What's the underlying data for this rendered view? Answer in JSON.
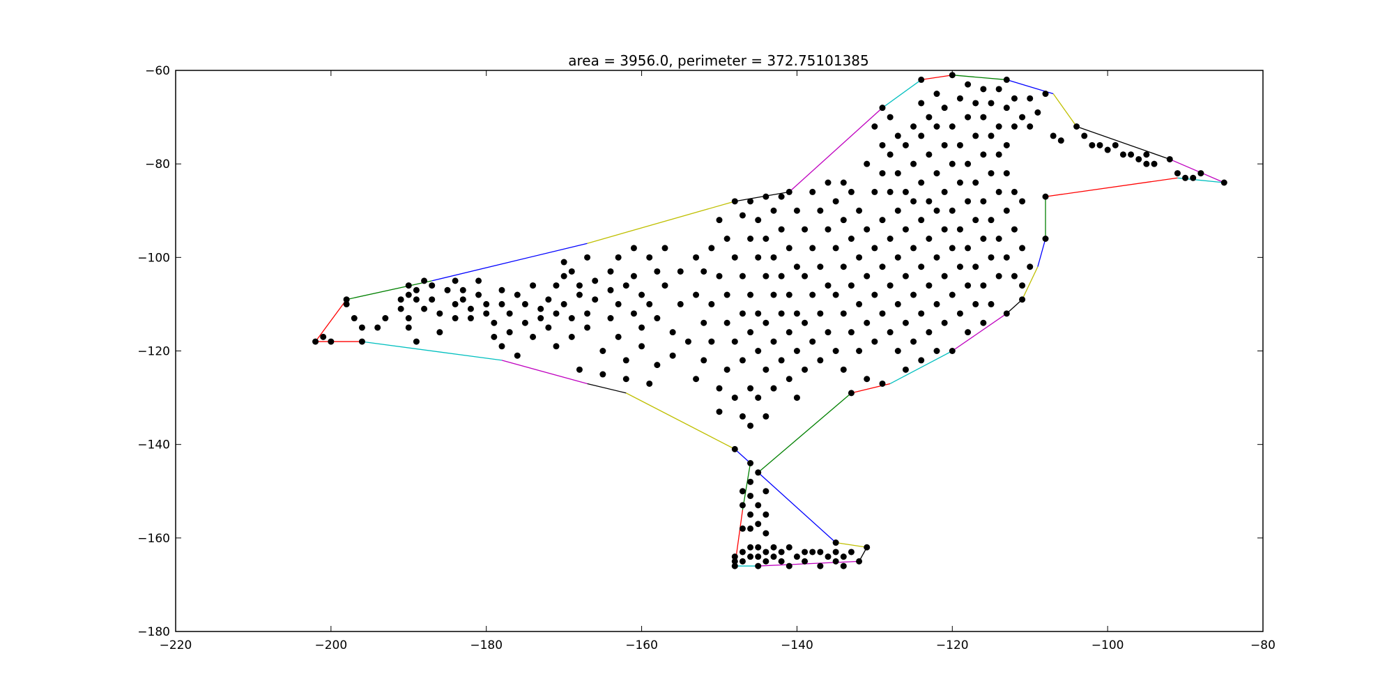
{
  "chart_data": {
    "type": "scatter",
    "title": "area = 3956.0, perimeter = 372.75101385",
    "xlabel": "",
    "ylabel": "",
    "xlim": [
      -220,
      -80
    ],
    "ylim": [
      -180,
      -60
    ],
    "x_ticks": [
      "−220",
      "−200",
      "−180",
      "−160",
      "−140",
      "−120",
      "−100",
      "−80"
    ],
    "y_ticks": [
      "−60",
      "−80",
      "−100",
      "−120",
      "−140",
      "−160",
      "−180"
    ],
    "grid": false,
    "legend": "none",
    "marker_color": "#000000",
    "hull_colors": [
      "#ff0000",
      "#008000",
      "#0000ff",
      "#bfbf00",
      "#000000",
      "#bf00bf",
      "#00bfbf"
    ],
    "hull": [
      [
        -202,
        -118
      ],
      [
        -198,
        -109
      ],
      [
        -187,
        -105
      ],
      [
        -167,
        -97
      ],
      [
        -148,
        -88
      ],
      [
        -141,
        -86
      ],
      [
        -129,
        -68
      ],
      [
        -124,
        -62
      ],
      [
        -120,
        -61
      ],
      [
        -113,
        -62
      ],
      [
        -107,
        -65
      ],
      [
        -104,
        -72
      ],
      [
        -92,
        -79
      ],
      [
        -85,
        -84
      ],
      [
        -91,
        -83
      ],
      [
        -108,
        -87
      ],
      [
        -108,
        -96
      ],
      [
        -109,
        -102
      ],
      [
        -111,
        -109
      ],
      [
        -113,
        -112
      ],
      [
        -120,
        -120
      ],
      [
        -128,
        -127
      ],
      [
        -133,
        -129
      ],
      [
        -145,
        -146
      ],
      [
        -135,
        -161
      ],
      [
        -131,
        -162
      ],
      [
        -132,
        -165
      ],
      [
        -145,
        -166
      ],
      [
        -148,
        -166
      ],
      [
        -147,
        -154
      ],
      [
        -146,
        -144
      ],
      [
        -148,
        -141
      ],
      [
        -162,
        -129
      ],
      [
        -167,
        -127
      ],
      [
        -178,
        -122
      ],
      [
        -196,
        -118
      ]
    ],
    "points": [
      [
        -202,
        -118
      ],
      [
        -201,
        -117
      ],
      [
        -200,
        -118
      ],
      [
        -198,
        -109
      ],
      [
        -198,
        -110
      ],
      [
        -196,
        -118
      ],
      [
        -197,
        -113
      ],
      [
        -196,
        -115
      ],
      [
        -194,
        -115
      ],
      [
        -193,
        -113
      ],
      [
        -191,
        -109
      ],
      [
        -191,
        -111
      ],
      [
        -190,
        -106
      ],
      [
        -190,
        -108
      ],
      [
        -190,
        -113
      ],
      [
        -190,
        -115
      ],
      [
        -189,
        -107
      ],
      [
        -189,
        -109
      ],
      [
        -189,
        -118
      ],
      [
        -188,
        -105
      ],
      [
        -188,
        -111
      ],
      [
        -187,
        -106
      ],
      [
        -187,
        -109
      ],
      [
        -186,
        -112
      ],
      [
        -186,
        -116
      ],
      [
        -185,
        -107
      ],
      [
        -184,
        -105
      ],
      [
        -184,
        -110
      ],
      [
        -184,
        -113
      ],
      [
        -183,
        -107
      ],
      [
        -183,
        -109
      ],
      [
        -182,
        -111
      ],
      [
        -182,
        -113
      ],
      [
        -181,
        -105
      ],
      [
        -181,
        -108
      ],
      [
        -180,
        -110
      ],
      [
        -180,
        -112
      ],
      [
        -179,
        -114
      ],
      [
        -179,
        -117
      ],
      [
        -178,
        -107
      ],
      [
        -178,
        -110
      ],
      [
        -178,
        -119
      ],
      [
        -177,
        -112
      ],
      [
        -177,
        -116
      ],
      [
        -176,
        -108
      ],
      [
        -176,
        -121
      ],
      [
        -175,
        -110
      ],
      [
        -175,
        -114
      ],
      [
        -174,
        -106
      ],
      [
        -174,
        -117
      ],
      [
        -173,
        -111
      ],
      [
        -173,
        -113
      ],
      [
        -172,
        -109
      ],
      [
        -172,
        -115
      ],
      [
        -171,
        -106
      ],
      [
        -171,
        -112
      ],
      [
        -171,
        -119
      ],
      [
        -170,
        -101
      ],
      [
        -170,
        -104
      ],
      [
        -170,
        -110
      ],
      [
        -169,
        -103
      ],
      [
        -169,
        -113
      ],
      [
        -169,
        -117
      ],
      [
        -168,
        -106
      ],
      [
        -168,
        -108
      ],
      [
        -168,
        -124
      ],
      [
        -167,
        -100
      ],
      [
        -167,
        -112
      ],
      [
        -167,
        -115
      ],
      [
        -166,
        -105
      ],
      [
        -166,
        -109
      ],
      [
        -165,
        -120
      ],
      [
        -165,
        -125
      ],
      [
        -164,
        -103
      ],
      [
        -164,
        -107
      ],
      [
        -164,
        -113
      ],
      [
        -163,
        -100
      ],
      [
        -163,
        -110
      ],
      [
        -163,
        -117
      ],
      [
        -162,
        -106
      ],
      [
        -162,
        -122
      ],
      [
        -162,
        -126
      ],
      [
        -161,
        -98
      ],
      [
        -161,
        -104
      ],
      [
        -161,
        -112
      ],
      [
        -160,
        -108
      ],
      [
        -160,
        -115
      ],
      [
        -160,
        -119
      ],
      [
        -159,
        -100
      ],
      [
        -159,
        -110
      ],
      [
        -159,
        -127
      ],
      [
        -158,
        -103
      ],
      [
        -158,
        -113
      ],
      [
        -158,
        -123
      ],
      [
        -157,
        -98
      ],
      [
        -157,
        -106
      ],
      [
        -156,
        -116
      ],
      [
        -156,
        -121
      ],
      [
        -155,
        -103
      ],
      [
        -155,
        -110
      ],
      [
        -154,
        -118
      ],
      [
        -153,
        -100
      ],
      [
        -153,
        -108
      ],
      [
        -153,
        -126
      ],
      [
        -152,
        -103
      ],
      [
        -152,
        -114
      ],
      [
        -152,
        -122
      ],
      [
        -151,
        -98
      ],
      [
        -151,
        -110
      ],
      [
        -151,
        -118
      ],
      [
        -150,
        -92
      ],
      [
        -150,
        -104
      ],
      [
        -150,
        -128
      ],
      [
        -150,
        -133
      ],
      [
        -149,
        -96
      ],
      [
        -149,
        -108
      ],
      [
        -149,
        -114
      ],
      [
        -149,
        -124
      ],
      [
        -148,
        -88
      ],
      [
        -148,
        -100
      ],
      [
        -148,
        -118
      ],
      [
        -148,
        -130
      ],
      [
        -148,
        -141
      ],
      [
        -147,
        -91
      ],
      [
        -147,
        -104
      ],
      [
        -147,
        -112
      ],
      [
        -147,
        -122
      ],
      [
        -147,
        -134
      ],
      [
        -146,
        -88
      ],
      [
        -146,
        -96
      ],
      [
        -146,
        -108
      ],
      [
        -146,
        -116
      ],
      [
        -146,
        -128
      ],
      [
        -146,
        -136
      ],
      [
        -146,
        -144
      ],
      [
        -145,
        -92
      ],
      [
        -145,
        -100
      ],
      [
        -145,
        -112
      ],
      [
        -145,
        -120
      ],
      [
        -145,
        -130
      ],
      [
        -145,
        -146
      ],
      [
        -144,
        -87
      ],
      [
        -144,
        -96
      ],
      [
        -144,
        -104
      ],
      [
        -144,
        -114
      ],
      [
        -144,
        -124
      ],
      [
        -144,
        -134
      ],
      [
        -143,
        -90
      ],
      [
        -143,
        -100
      ],
      [
        -143,
        -108
      ],
      [
        -143,
        -118
      ],
      [
        -143,
        -128
      ],
      [
        -142,
        -87
      ],
      [
        -142,
        -94
      ],
      [
        -142,
        -104
      ],
      [
        -142,
        -112
      ],
      [
        -142,
        -122
      ],
      [
        -141,
        -86
      ],
      [
        -141,
        -98
      ],
      [
        -141,
        -108
      ],
      [
        -141,
        -116
      ],
      [
        -141,
        -126
      ],
      [
        -140,
        -90
      ],
      [
        -140,
        -102
      ],
      [
        -140,
        -112
      ],
      [
        -140,
        -120
      ],
      [
        -140,
        -130
      ],
      [
        -139,
        -94
      ],
      [
        -139,
        -104
      ],
      [
        -139,
        -114
      ],
      [
        -139,
        -124
      ],
      [
        -138,
        -86
      ],
      [
        -138,
        -98
      ],
      [
        -138,
        -108
      ],
      [
        -138,
        -118
      ],
      [
        -137,
        -90
      ],
      [
        -137,
        -102
      ],
      [
        -137,
        -112
      ],
      [
        -137,
        -122
      ],
      [
        -136,
        -84
      ],
      [
        -136,
        -94
      ],
      [
        -136,
        -106
      ],
      [
        -136,
        -116
      ],
      [
        -135,
        -88
      ],
      [
        -135,
        -98
      ],
      [
        -135,
        -108
      ],
      [
        -135,
        -120
      ],
      [
        -134,
        -84
      ],
      [
        -134,
        -92
      ],
      [
        -134,
        -102
      ],
      [
        -134,
        -112
      ],
      [
        -134,
        -124
      ],
      [
        -133,
        -86
      ],
      [
        -133,
        -96
      ],
      [
        -133,
        -106
      ],
      [
        -133,
        -116
      ],
      [
        -133,
        -129
      ],
      [
        -132,
        -90
      ],
      [
        -132,
        -100
      ],
      [
        -132,
        -110
      ],
      [
        -132,
        -120
      ],
      [
        -131,
        -80
      ],
      [
        -131,
        -94
      ],
      [
        -131,
        -104
      ],
      [
        -131,
        -114
      ],
      [
        -131,
        -126
      ],
      [
        -130,
        -72
      ],
      [
        -130,
        -86
      ],
      [
        -130,
        -98
      ],
      [
        -130,
        -108
      ],
      [
        -130,
        -118
      ],
      [
        -129,
        -68
      ],
      [
        -129,
        -76
      ],
      [
        -129,
        -82
      ],
      [
        -129,
        -92
      ],
      [
        -129,
        -102
      ],
      [
        -129,
        -112
      ],
      [
        -129,
        -127
      ],
      [
        -128,
        -70
      ],
      [
        -128,
        -78
      ],
      [
        -128,
        -86
      ],
      [
        -128,
        -96
      ],
      [
        -128,
        -106
      ],
      [
        -128,
        -116
      ],
      [
        -127,
        -74
      ],
      [
        -127,
        -82
      ],
      [
        -127,
        -90
      ],
      [
        -127,
        -100
      ],
      [
        -127,
        -110
      ],
      [
        -127,
        -120
      ],
      [
        -126,
        -76
      ],
      [
        -126,
        -86
      ],
      [
        -126,
        -94
      ],
      [
        -126,
        -104
      ],
      [
        -126,
        -114
      ],
      [
        -126,
        -124
      ],
      [
        -125,
        -72
      ],
      [
        -125,
        -80
      ],
      [
        -125,
        -88
      ],
      [
        -125,
        -98
      ],
      [
        -125,
        -108
      ],
      [
        -125,
        -118
      ],
      [
        -124,
        -62
      ],
      [
        -124,
        -67
      ],
      [
        -124,
        -74
      ],
      [
        -124,
        -84
      ],
      [
        -124,
        -92
      ],
      [
        -124,
        -102
      ],
      [
        -124,
        -112
      ],
      [
        -124,
        -122
      ],
      [
        -123,
        -70
      ],
      [
        -123,
        -78
      ],
      [
        -123,
        -88
      ],
      [
        -123,
        -96
      ],
      [
        -123,
        -106
      ],
      [
        -123,
        -116
      ],
      [
        -122,
        -65
      ],
      [
        -122,
        -72
      ],
      [
        -122,
        -82
      ],
      [
        -122,
        -90
      ],
      [
        -122,
        -100
      ],
      [
        -122,
        -110
      ],
      [
        -122,
        -120
      ],
      [
        -121,
        -68
      ],
      [
        -121,
        -76
      ],
      [
        -121,
        -86
      ],
      [
        -121,
        -94
      ],
      [
        -121,
        -104
      ],
      [
        -121,
        -114
      ],
      [
        -120,
        -61
      ],
      [
        -120,
        -72
      ],
      [
        -120,
        -80
      ],
      [
        -120,
        -90
      ],
      [
        -120,
        -98
      ],
      [
        -120,
        -108
      ],
      [
        -120,
        -120
      ],
      [
        -119,
        -66
      ],
      [
        -119,
        -76
      ],
      [
        -119,
        -84
      ],
      [
        -119,
        -94
      ],
      [
        -119,
        -102
      ],
      [
        -119,
        -112
      ],
      [
        -118,
        -63
      ],
      [
        -118,
        -70
      ],
      [
        -118,
        -80
      ],
      [
        -118,
        -88
      ],
      [
        -118,
        -98
      ],
      [
        -118,
        -106
      ],
      [
        -118,
        -116
      ],
      [
        -117,
        -67
      ],
      [
        -117,
        -74
      ],
      [
        -117,
        -84
      ],
      [
        -117,
        -92
      ],
      [
        -117,
        -102
      ],
      [
        -117,
        -110
      ],
      [
        -116,
        -64
      ],
      [
        -116,
        -70
      ],
      [
        -116,
        -78
      ],
      [
        -116,
        -88
      ],
      [
        -116,
        -96
      ],
      [
        -116,
        -106
      ],
      [
        -116,
        -114
      ],
      [
        -115,
        -67
      ],
      [
        -115,
        -74
      ],
      [
        -115,
        -82
      ],
      [
        -115,
        -92
      ],
      [
        -115,
        -100
      ],
      [
        -115,
        -110
      ],
      [
        -114,
        -64
      ],
      [
        -114,
        -72
      ],
      [
        -114,
        -78
      ],
      [
        -114,
        -86
      ],
      [
        -114,
        -96
      ],
      [
        -114,
        -104
      ],
      [
        -113,
        -62
      ],
      [
        -113,
        -68
      ],
      [
        -113,
        -76
      ],
      [
        -113,
        -82
      ],
      [
        -113,
        -90
      ],
      [
        -113,
        -100
      ],
      [
        -113,
        -112
      ],
      [
        -112,
        -66
      ],
      [
        -112,
        -72
      ],
      [
        -112,
        -86
      ],
      [
        -112,
        -94
      ],
      [
        -112,
        -104
      ],
      [
        -111,
        -70
      ],
      [
        -111,
        -88
      ],
      [
        -111,
        -98
      ],
      [
        -111,
        -106
      ],
      [
        -111,
        -109
      ],
      [
        -110,
        -66
      ],
      [
        -110,
        -72
      ],
      [
        -110,
        -102
      ],
      [
        -109,
        -69
      ],
      [
        -108,
        -65
      ],
      [
        -108,
        -87
      ],
      [
        -108,
        -96
      ],
      [
        -107,
        -74
      ],
      [
        -106,
        -75
      ],
      [
        -104,
        -72
      ],
      [
        -103,
        -74
      ],
      [
        -102,
        -76
      ],
      [
        -101,
        -76
      ],
      [
        -100,
        -77
      ],
      [
        -99,
        -76
      ],
      [
        -98,
        -78
      ],
      [
        -97,
        -78
      ],
      [
        -96,
        -79
      ],
      [
        -95,
        -78
      ],
      [
        -95,
        -80
      ],
      [
        -94,
        -80
      ],
      [
        -92,
        -79
      ],
      [
        -91,
        -82
      ],
      [
        -90,
        -83
      ],
      [
        -89,
        -83
      ],
      [
        -88,
        -82
      ],
      [
        -85,
        -84
      ],
      [
        -147,
        -150
      ],
      [
        -147,
        -153
      ],
      [
        -146,
        -148
      ],
      [
        -146,
        -151
      ],
      [
        -146,
        -155
      ],
      [
        -145,
        -153
      ],
      [
        -145,
        -157
      ],
      [
        -144,
        -150
      ],
      [
        -144,
        -155
      ],
      [
        -144,
        -159
      ],
      [
        -146,
        -158
      ],
      [
        -147,
        -158
      ],
      [
        -148,
        -164
      ],
      [
        -148,
        -165
      ],
      [
        -148,
        -166
      ],
      [
        -147,
        -163
      ],
      [
        -147,
        -165
      ],
      [
        -146,
        -162
      ],
      [
        -146,
        -164
      ],
      [
        -145,
        -162
      ],
      [
        -145,
        -164
      ],
      [
        -145,
        -166
      ],
      [
        -144,
        -163
      ],
      [
        -144,
        -165
      ],
      [
        -143,
        -162
      ],
      [
        -143,
        -164
      ],
      [
        -142,
        -163
      ],
      [
        -142,
        -165
      ],
      [
        -141,
        -162
      ],
      [
        -141,
        -166
      ],
      [
        -140,
        -164
      ],
      [
        -139,
        -163
      ],
      [
        -139,
        -165
      ],
      [
        -138,
        -163
      ],
      [
        -137,
        -163
      ],
      [
        -137,
        -166
      ],
      [
        -136,
        -164
      ],
      [
        -135,
        -161
      ],
      [
        -135,
        -163
      ],
      [
        -135,
        -165
      ],
      [
        -134,
        -164
      ],
      [
        -134,
        -166
      ],
      [
        -133,
        -163
      ],
      [
        -132,
        -165
      ],
      [
        -131,
        -162
      ]
    ]
  }
}
